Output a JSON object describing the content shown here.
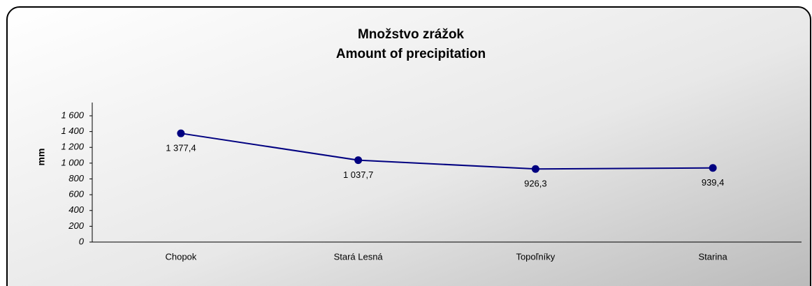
{
  "chart_data": {
    "type": "line",
    "title": "Množstvo zrážok",
    "subtitle": "Amount of precipitation",
    "y_label": "mm",
    "categories": [
      "Chopok",
      "Stará Lesná",
      "Topoľníky",
      "Starina"
    ],
    "series": [
      {
        "name": "Amount of precipitation",
        "color": "#000080",
        "values": [
          1377.4,
          1037.7,
          926.3,
          939.4
        ],
        "value_labels": [
          "1 377,4",
          "1 037,7",
          "926,3",
          "939,4"
        ]
      }
    ],
    "ylim": [
      0,
      1600
    ],
    "yticks": [
      0,
      200,
      400,
      600,
      800,
      {
        "value": 1000,
        "label": "1 000"
      },
      {
        "value": 1200,
        "label": "1 200"
      },
      {
        "value": 1400,
        "label": "1 400"
      },
      {
        "value": 1600,
        "label": "1 600"
      }
    ],
    "grid": false,
    "legend": false
  }
}
